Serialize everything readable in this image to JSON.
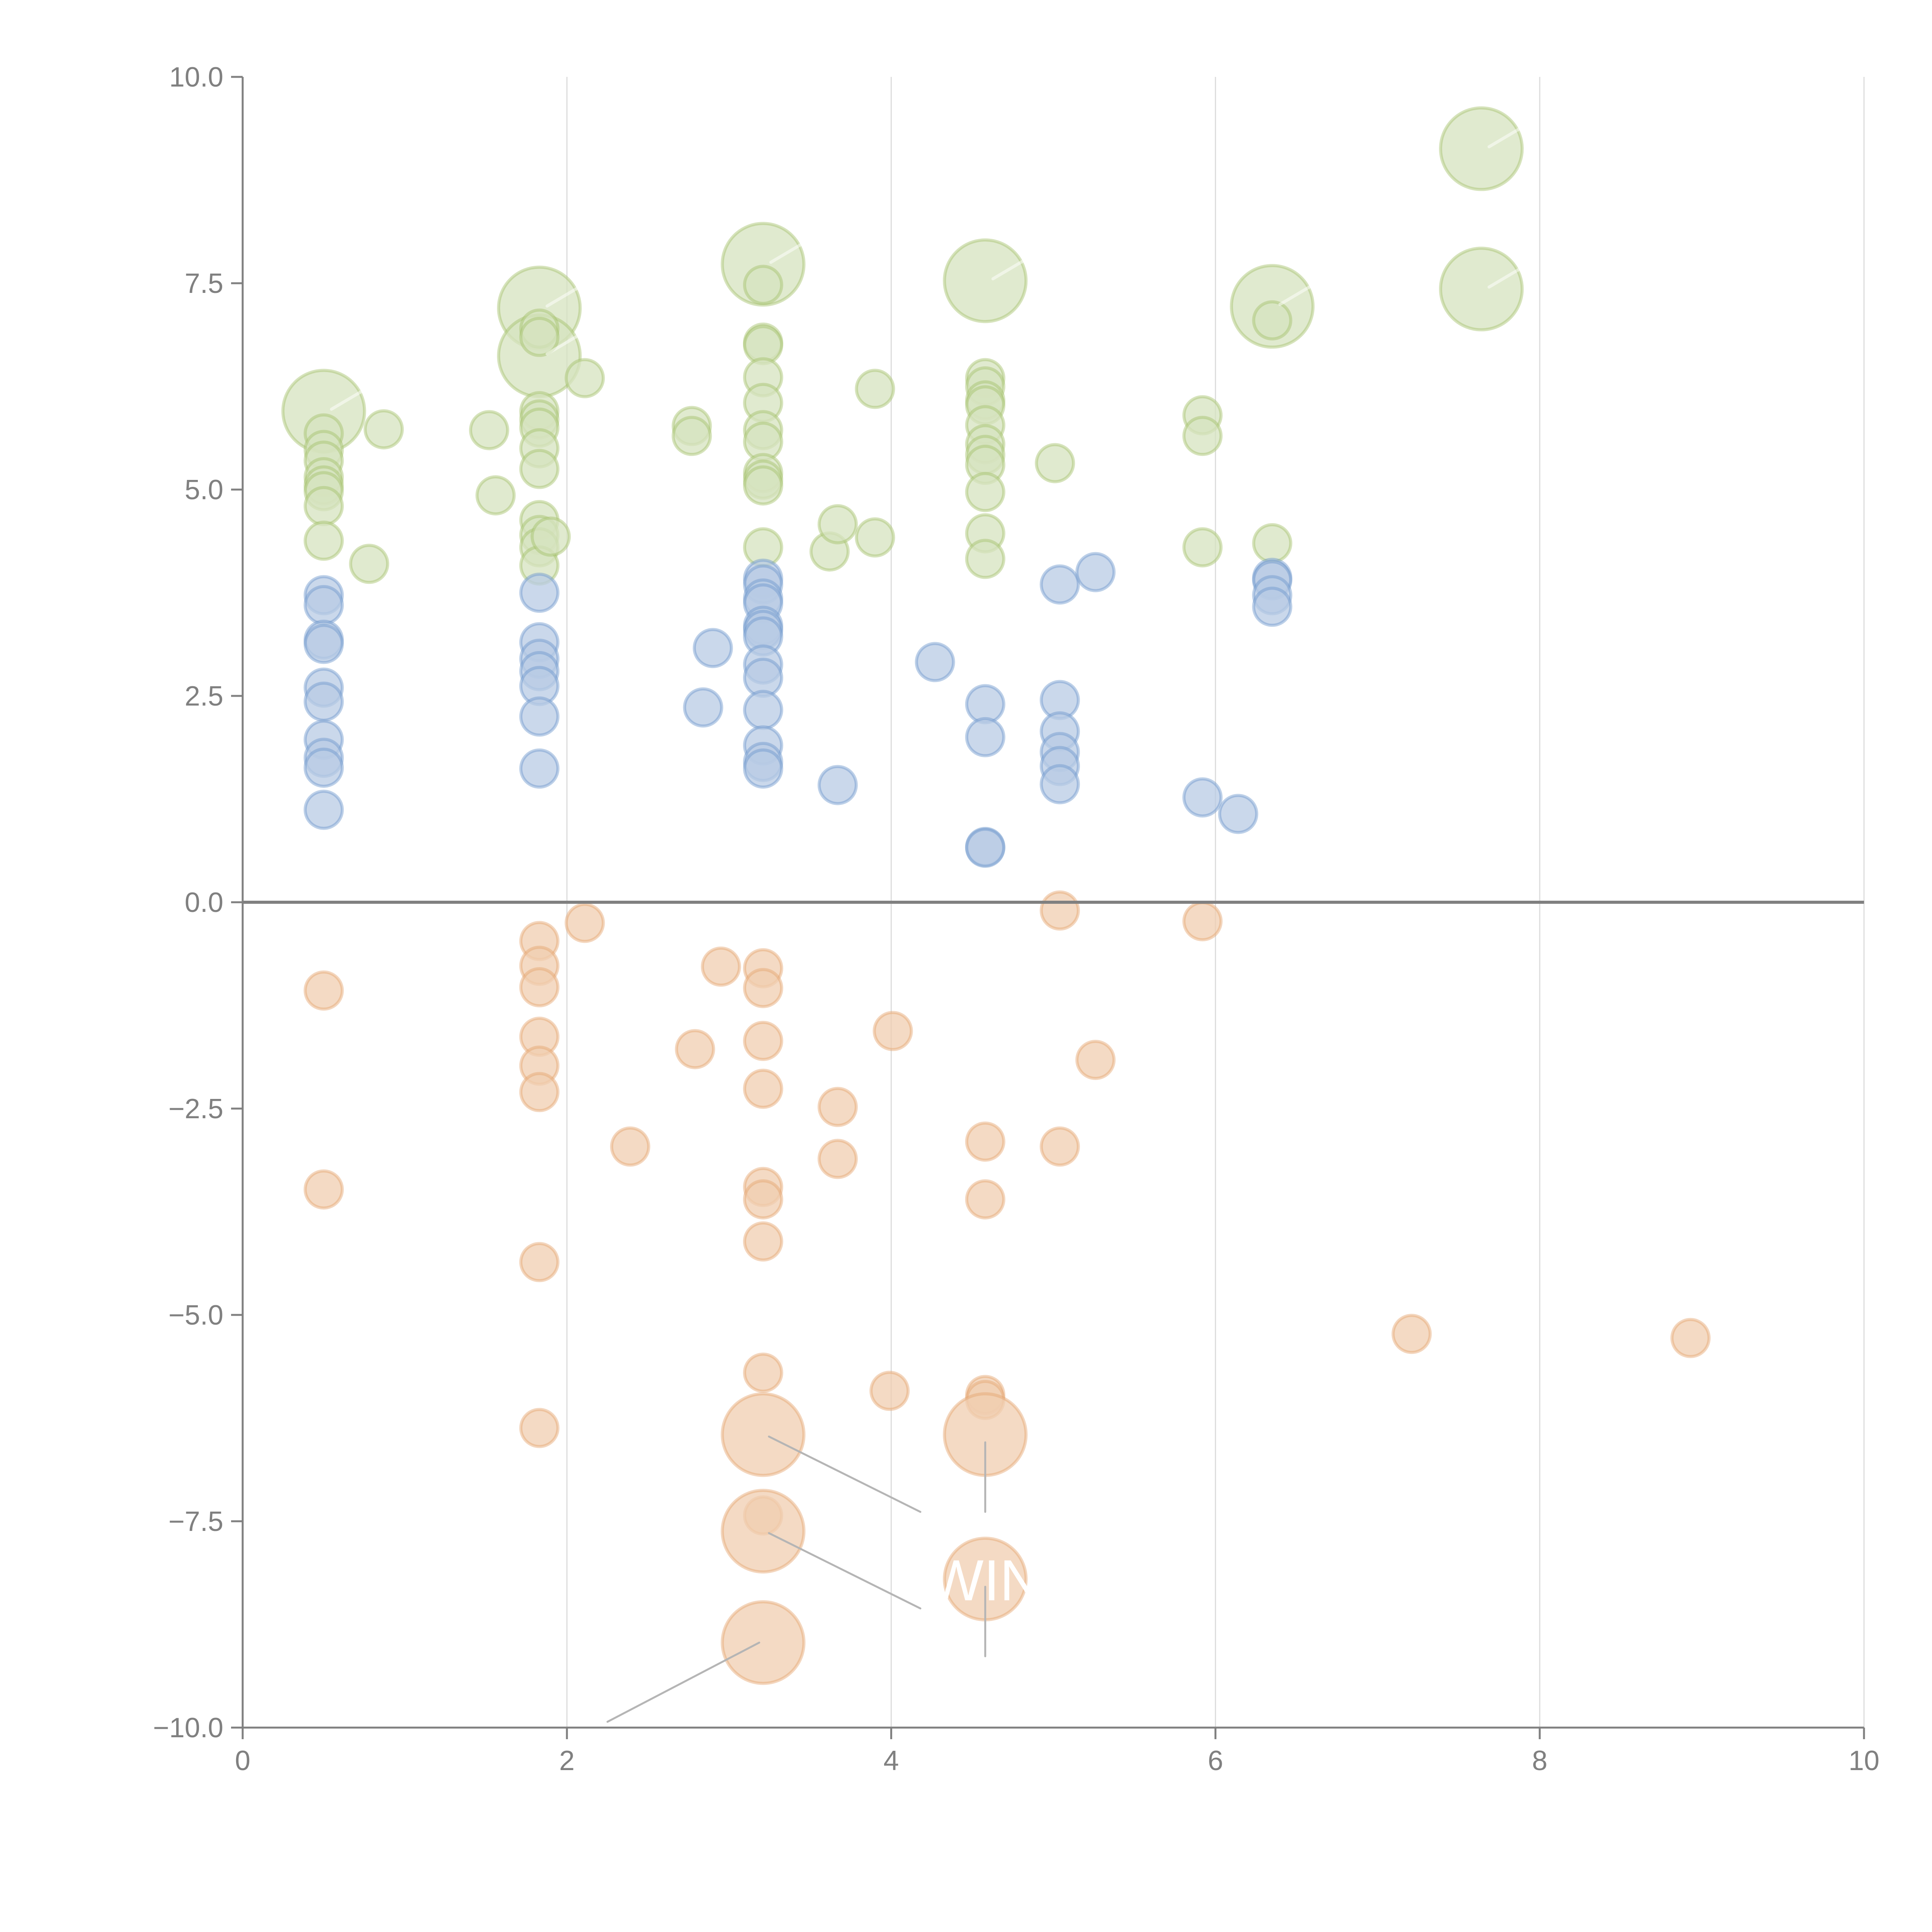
{
  "chart_data": {
    "type": "scatter",
    "subtype": "bubble",
    "title": "",
    "xlabel": "",
    "ylabel": "",
    "xlim": [
      0,
      10
    ],
    "ylim": [
      -10,
      10
    ],
    "grid": "vertical",
    "legend": "none",
    "x_ticks": [
      "0",
      "2",
      "4",
      "6",
      "8",
      "10"
    ],
    "y_ticks": [
      "10.0",
      "7.5",
      "5.0",
      "2.5",
      "0.0",
      "−2.5",
      "−5.0",
      "−7.5",
      "−10.0"
    ],
    "x_tick_values": [
      0,
      2,
      4,
      6,
      8,
      10
    ],
    "y_tick_values": [
      10,
      7.5,
      5,
      2.5,
      0,
      -2.5,
      -5,
      -7.5,
      -10
    ],
    "reference_line_y": 0,
    "series": [
      {
        "name": "green",
        "color": "#a3c26b",
        "points": [
          {
            "x": 0.5,
            "y": 5.95,
            "s": 2.2
          },
          {
            "x": 0.5,
            "y": 5.68,
            "s": 1
          },
          {
            "x": 0.5,
            "y": 5.48,
            "s": 1
          },
          {
            "x": 0.5,
            "y": 5.35,
            "s": 1
          },
          {
            "x": 0.5,
            "y": 5.15,
            "s": 1
          },
          {
            "x": 0.5,
            "y": 5.05,
            "s": 1
          },
          {
            "x": 0.5,
            "y": 4.98,
            "s": 1
          },
          {
            "x": 0.5,
            "y": 4.8,
            "s": 1
          },
          {
            "x": 0.5,
            "y": 4.38,
            "s": 1
          },
          {
            "x": 0.78,
            "y": 4.1,
            "s": 1
          },
          {
            "x": 0.87,
            "y": 5.73,
            "s": 1
          },
          {
            "x": 1.52,
            "y": 5.72,
            "s": 1
          },
          {
            "x": 1.56,
            "y": 4.93,
            "s": 1
          },
          {
            "x": 1.83,
            "y": 7.2,
            "s": 2.2
          },
          {
            "x": 1.83,
            "y": 6.62,
            "s": 2.2
          },
          {
            "x": 1.83,
            "y": 6.95,
            "s": 1
          },
          {
            "x": 1.83,
            "y": 6.85,
            "s": 1
          },
          {
            "x": 1.83,
            "y": 5.95,
            "s": 1
          },
          {
            "x": 1.83,
            "y": 5.85,
            "s": 1
          },
          {
            "x": 1.83,
            "y": 5.75,
            "s": 1
          },
          {
            "x": 1.83,
            "y": 5.5,
            "s": 1
          },
          {
            "x": 1.83,
            "y": 5.25,
            "s": 1
          },
          {
            "x": 1.83,
            "y": 4.63,
            "s": 1
          },
          {
            "x": 1.83,
            "y": 4.45,
            "s": 1
          },
          {
            "x": 1.83,
            "y": 4.3,
            "s": 1
          },
          {
            "x": 1.83,
            "y": 4.08,
            "s": 1
          },
          {
            "x": 1.9,
            "y": 4.43,
            "s": 1
          },
          {
            "x": 2.11,
            "y": 6.35,
            "s": 1
          },
          {
            "x": 2.77,
            "y": 5.77,
            "s": 1
          },
          {
            "x": 2.77,
            "y": 5.65,
            "s": 1
          },
          {
            "x": 3.21,
            "y": 7.73,
            "s": 2.2
          },
          {
            "x": 3.21,
            "y": 7.48,
            "s": 1
          },
          {
            "x": 3.21,
            "y": 6.78,
            "s": 1
          },
          {
            "x": 3.21,
            "y": 6.75,
            "s": 1
          },
          {
            "x": 3.21,
            "y": 6.36,
            "s": 1
          },
          {
            "x": 3.21,
            "y": 6.05,
            "s": 1
          },
          {
            "x": 3.21,
            "y": 5.72,
            "s": 1
          },
          {
            "x": 3.21,
            "y": 5.58,
            "s": 1
          },
          {
            "x": 3.21,
            "y": 5.2,
            "s": 1
          },
          {
            "x": 3.21,
            "y": 5.12,
            "s": 1
          },
          {
            "x": 3.21,
            "y": 5.05,
            "s": 1
          },
          {
            "x": 3.21,
            "y": 4.3,
            "s": 1
          },
          {
            "x": 3.62,
            "y": 4.25,
            "s": 1
          },
          {
            "x": 3.67,
            "y": 4.58,
            "s": 1
          },
          {
            "x": 3.9,
            "y": 4.42,
            "s": 1
          },
          {
            "x": 3.9,
            "y": 6.22,
            "s": 1
          },
          {
            "x": 4.58,
            "y": 7.53,
            "s": 2.2
          },
          {
            "x": 4.58,
            "y": 6.35,
            "s": 1
          },
          {
            "x": 4.58,
            "y": 6.25,
            "s": 1
          },
          {
            "x": 4.58,
            "y": 6.08,
            "s": 1
          },
          {
            "x": 4.58,
            "y": 6.02,
            "s": 1
          },
          {
            "x": 4.58,
            "y": 5.78,
            "s": 1
          },
          {
            "x": 4.58,
            "y": 5.55,
            "s": 1
          },
          {
            "x": 4.58,
            "y": 5.42,
            "s": 1
          },
          {
            "x": 4.58,
            "y": 5.3,
            "s": 1
          },
          {
            "x": 4.58,
            "y": 4.97,
            "s": 1
          },
          {
            "x": 4.58,
            "y": 4.47,
            "s": 1
          },
          {
            "x": 4.58,
            "y": 4.16,
            "s": 1
          },
          {
            "x": 5.01,
            "y": 5.32,
            "s": 1
          },
          {
            "x": 5.92,
            "y": 5.9,
            "s": 1
          },
          {
            "x": 5.92,
            "y": 5.65,
            "s": 1
          },
          {
            "x": 5.92,
            "y": 4.3,
            "s": 1
          },
          {
            "x": 6.35,
            "y": 7.22,
            "s": 2.2
          },
          {
            "x": 6.35,
            "y": 7.05,
            "s": 1
          },
          {
            "x": 6.35,
            "y": 4.35,
            "s": 1
          },
          {
            "x": 7.64,
            "y": 9.13,
            "s": 2.2
          },
          {
            "x": 7.64,
            "y": 7.43,
            "s": 2.2
          }
        ]
      },
      {
        "name": "blue",
        "color": "#6d96cc",
        "points": [
          {
            "x": 0.5,
            "y": 3.72,
            "s": 1
          },
          {
            "x": 0.5,
            "y": 3.6,
            "s": 1
          },
          {
            "x": 0.5,
            "y": 3.18,
            "s": 1
          },
          {
            "x": 0.5,
            "y": 3.13,
            "s": 1
          },
          {
            "x": 0.5,
            "y": 2.6,
            "s": 1
          },
          {
            "x": 0.5,
            "y": 2.43,
            "s": 1
          },
          {
            "x": 0.5,
            "y": 1.97,
            "s": 1
          },
          {
            "x": 0.5,
            "y": 1.75,
            "s": 1
          },
          {
            "x": 0.5,
            "y": 1.63,
            "s": 1
          },
          {
            "x": 0.5,
            "y": 1.12,
            "s": 1
          },
          {
            "x": 1.83,
            "y": 3.75,
            "s": 1
          },
          {
            "x": 1.83,
            "y": 3.15,
            "s": 1
          },
          {
            "x": 1.83,
            "y": 2.95,
            "s": 1
          },
          {
            "x": 1.83,
            "y": 2.8,
            "s": 1
          },
          {
            "x": 1.83,
            "y": 2.62,
            "s": 1
          },
          {
            "x": 1.83,
            "y": 2.25,
            "s": 1
          },
          {
            "x": 1.83,
            "y": 1.62,
            "s": 1
          },
          {
            "x": 2.84,
            "y": 2.36,
            "s": 1
          },
          {
            "x": 2.9,
            "y": 3.08,
            "s": 1
          },
          {
            "x": 3.21,
            "y": 3.92,
            "s": 1
          },
          {
            "x": 3.21,
            "y": 3.85,
            "s": 1
          },
          {
            "x": 3.21,
            "y": 3.68,
            "s": 1
          },
          {
            "x": 3.21,
            "y": 3.62,
            "s": 1
          },
          {
            "x": 3.21,
            "y": 3.35,
            "s": 1
          },
          {
            "x": 3.21,
            "y": 3.3,
            "s": 1
          },
          {
            "x": 3.21,
            "y": 3.22,
            "s": 1
          },
          {
            "x": 3.21,
            "y": 2.88,
            "s": 1
          },
          {
            "x": 3.21,
            "y": 2.72,
            "s": 1
          },
          {
            "x": 3.21,
            "y": 2.33,
            "s": 1
          },
          {
            "x": 3.21,
            "y": 1.9,
            "s": 1
          },
          {
            "x": 3.21,
            "y": 1.7,
            "s": 1
          },
          {
            "x": 3.21,
            "y": 1.62,
            "s": 1
          },
          {
            "x": 3.67,
            "y": 1.42,
            "s": 1
          },
          {
            "x": 4.27,
            "y": 2.91,
            "s": 1
          },
          {
            "x": 4.58,
            "y": 2.4,
            "s": 1
          },
          {
            "x": 4.58,
            "y": 2.0,
            "s": 1
          },
          {
            "x": 4.58,
            "y": 0.67,
            "s": 1
          },
          {
            "x": 4.58,
            "y": 0.66,
            "s": 1
          },
          {
            "x": 5.04,
            "y": 3.85,
            "s": 1
          },
          {
            "x": 5.04,
            "y": 2.45,
            "s": 1
          },
          {
            "x": 5.04,
            "y": 2.07,
            "s": 1
          },
          {
            "x": 5.04,
            "y": 1.82,
            "s": 1
          },
          {
            "x": 5.04,
            "y": 1.65,
            "s": 1
          },
          {
            "x": 5.04,
            "y": 1.43,
            "s": 1
          },
          {
            "x": 5.26,
            "y": 4.0,
            "s": 1
          },
          {
            "x": 5.92,
            "y": 1.27,
            "s": 1
          },
          {
            "x": 6.14,
            "y": 1.07,
            "s": 1
          },
          {
            "x": 6.35,
            "y": 3.93,
            "s": 1
          },
          {
            "x": 6.35,
            "y": 3.9,
            "s": 1
          },
          {
            "x": 6.35,
            "y": 3.72,
            "s": 1
          },
          {
            "x": 6.35,
            "y": 3.58,
            "s": 1
          }
        ]
      },
      {
        "name": "orange",
        "color": "#e5a46e",
        "points": [
          {
            "x": 0.5,
            "y": -1.07,
            "s": 1
          },
          {
            "x": 0.5,
            "y": -3.48,
            "s": 1
          },
          {
            "x": 1.83,
            "y": -0.47,
            "s": 1
          },
          {
            "x": 1.83,
            "y": -0.77,
            "s": 1
          },
          {
            "x": 1.83,
            "y": -1.03,
            "s": 1
          },
          {
            "x": 1.83,
            "y": -1.63,
            "s": 1
          },
          {
            "x": 1.83,
            "y": -1.98,
            "s": 1
          },
          {
            "x": 1.83,
            "y": -2.3,
            "s": 1
          },
          {
            "x": 1.83,
            "y": -4.36,
            "s": 1
          },
          {
            "x": 1.83,
            "y": -6.37,
            "s": 1
          },
          {
            "x": 2.11,
            "y": -0.25,
            "s": 1
          },
          {
            "x": 2.39,
            "y": -2.96,
            "s": 1
          },
          {
            "x": 2.79,
            "y": -1.78,
            "s": 1
          },
          {
            "x": 2.95,
            "y": -0.78,
            "s": 1
          },
          {
            "x": 3.21,
            "y": -0.8,
            "s": 1
          },
          {
            "x": 3.21,
            "y": -1.04,
            "s": 1
          },
          {
            "x": 3.21,
            "y": -1.68,
            "s": 1
          },
          {
            "x": 3.21,
            "y": -2.26,
            "s": 1
          },
          {
            "x": 3.21,
            "y": -3.45,
            "s": 1
          },
          {
            "x": 3.21,
            "y": -3.6,
            "s": 1
          },
          {
            "x": 3.21,
            "y": -4.11,
            "s": 1
          },
          {
            "x": 3.21,
            "y": -5.7,
            "s": 1
          },
          {
            "x": 3.21,
            "y": -6.45,
            "s": 2.2
          },
          {
            "x": 3.21,
            "y": -7.43,
            "s": 1
          },
          {
            "x": 3.21,
            "y": -7.62,
            "s": 2.2
          },
          {
            "x": 3.21,
            "y": -8.97,
            "s": 2.2
          },
          {
            "x": 3.67,
            "y": -2.48,
            "s": 1
          },
          {
            "x": 3.67,
            "y": -3.11,
            "s": 1
          },
          {
            "x": 3.99,
            "y": -5.92,
            "s": 1
          },
          {
            "x": 4.01,
            "y": -1.56,
            "s": 1
          },
          {
            "x": 4.58,
            "y": -2.9,
            "s": 1
          },
          {
            "x": 4.58,
            "y": -3.6,
            "s": 1
          },
          {
            "x": 4.58,
            "y": -5.97,
            "s": 1
          },
          {
            "x": 4.58,
            "y": -6.03,
            "s": 1
          },
          {
            "x": 4.58,
            "y": -6.45,
            "s": 2.2
          },
          {
            "x": 4.58,
            "y": -8.2,
            "s": 2.2
          },
          {
            "x": 5.04,
            "y": -0.1,
            "s": 1
          },
          {
            "x": 5.04,
            "y": -2.96,
            "s": 1
          },
          {
            "x": 5.26,
            "y": -1.91,
            "s": 1
          },
          {
            "x": 5.92,
            "y": -0.23,
            "s": 1
          },
          {
            "x": 7.21,
            "y": -5.23,
            "s": 1
          },
          {
            "x": 8.93,
            "y": -5.28,
            "s": 1
          }
        ]
      }
    ],
    "annotations": [
      {
        "series": "orange",
        "x": 4.58,
        "y": -8.2,
        "text_visible": "WIN"
      }
    ]
  }
}
